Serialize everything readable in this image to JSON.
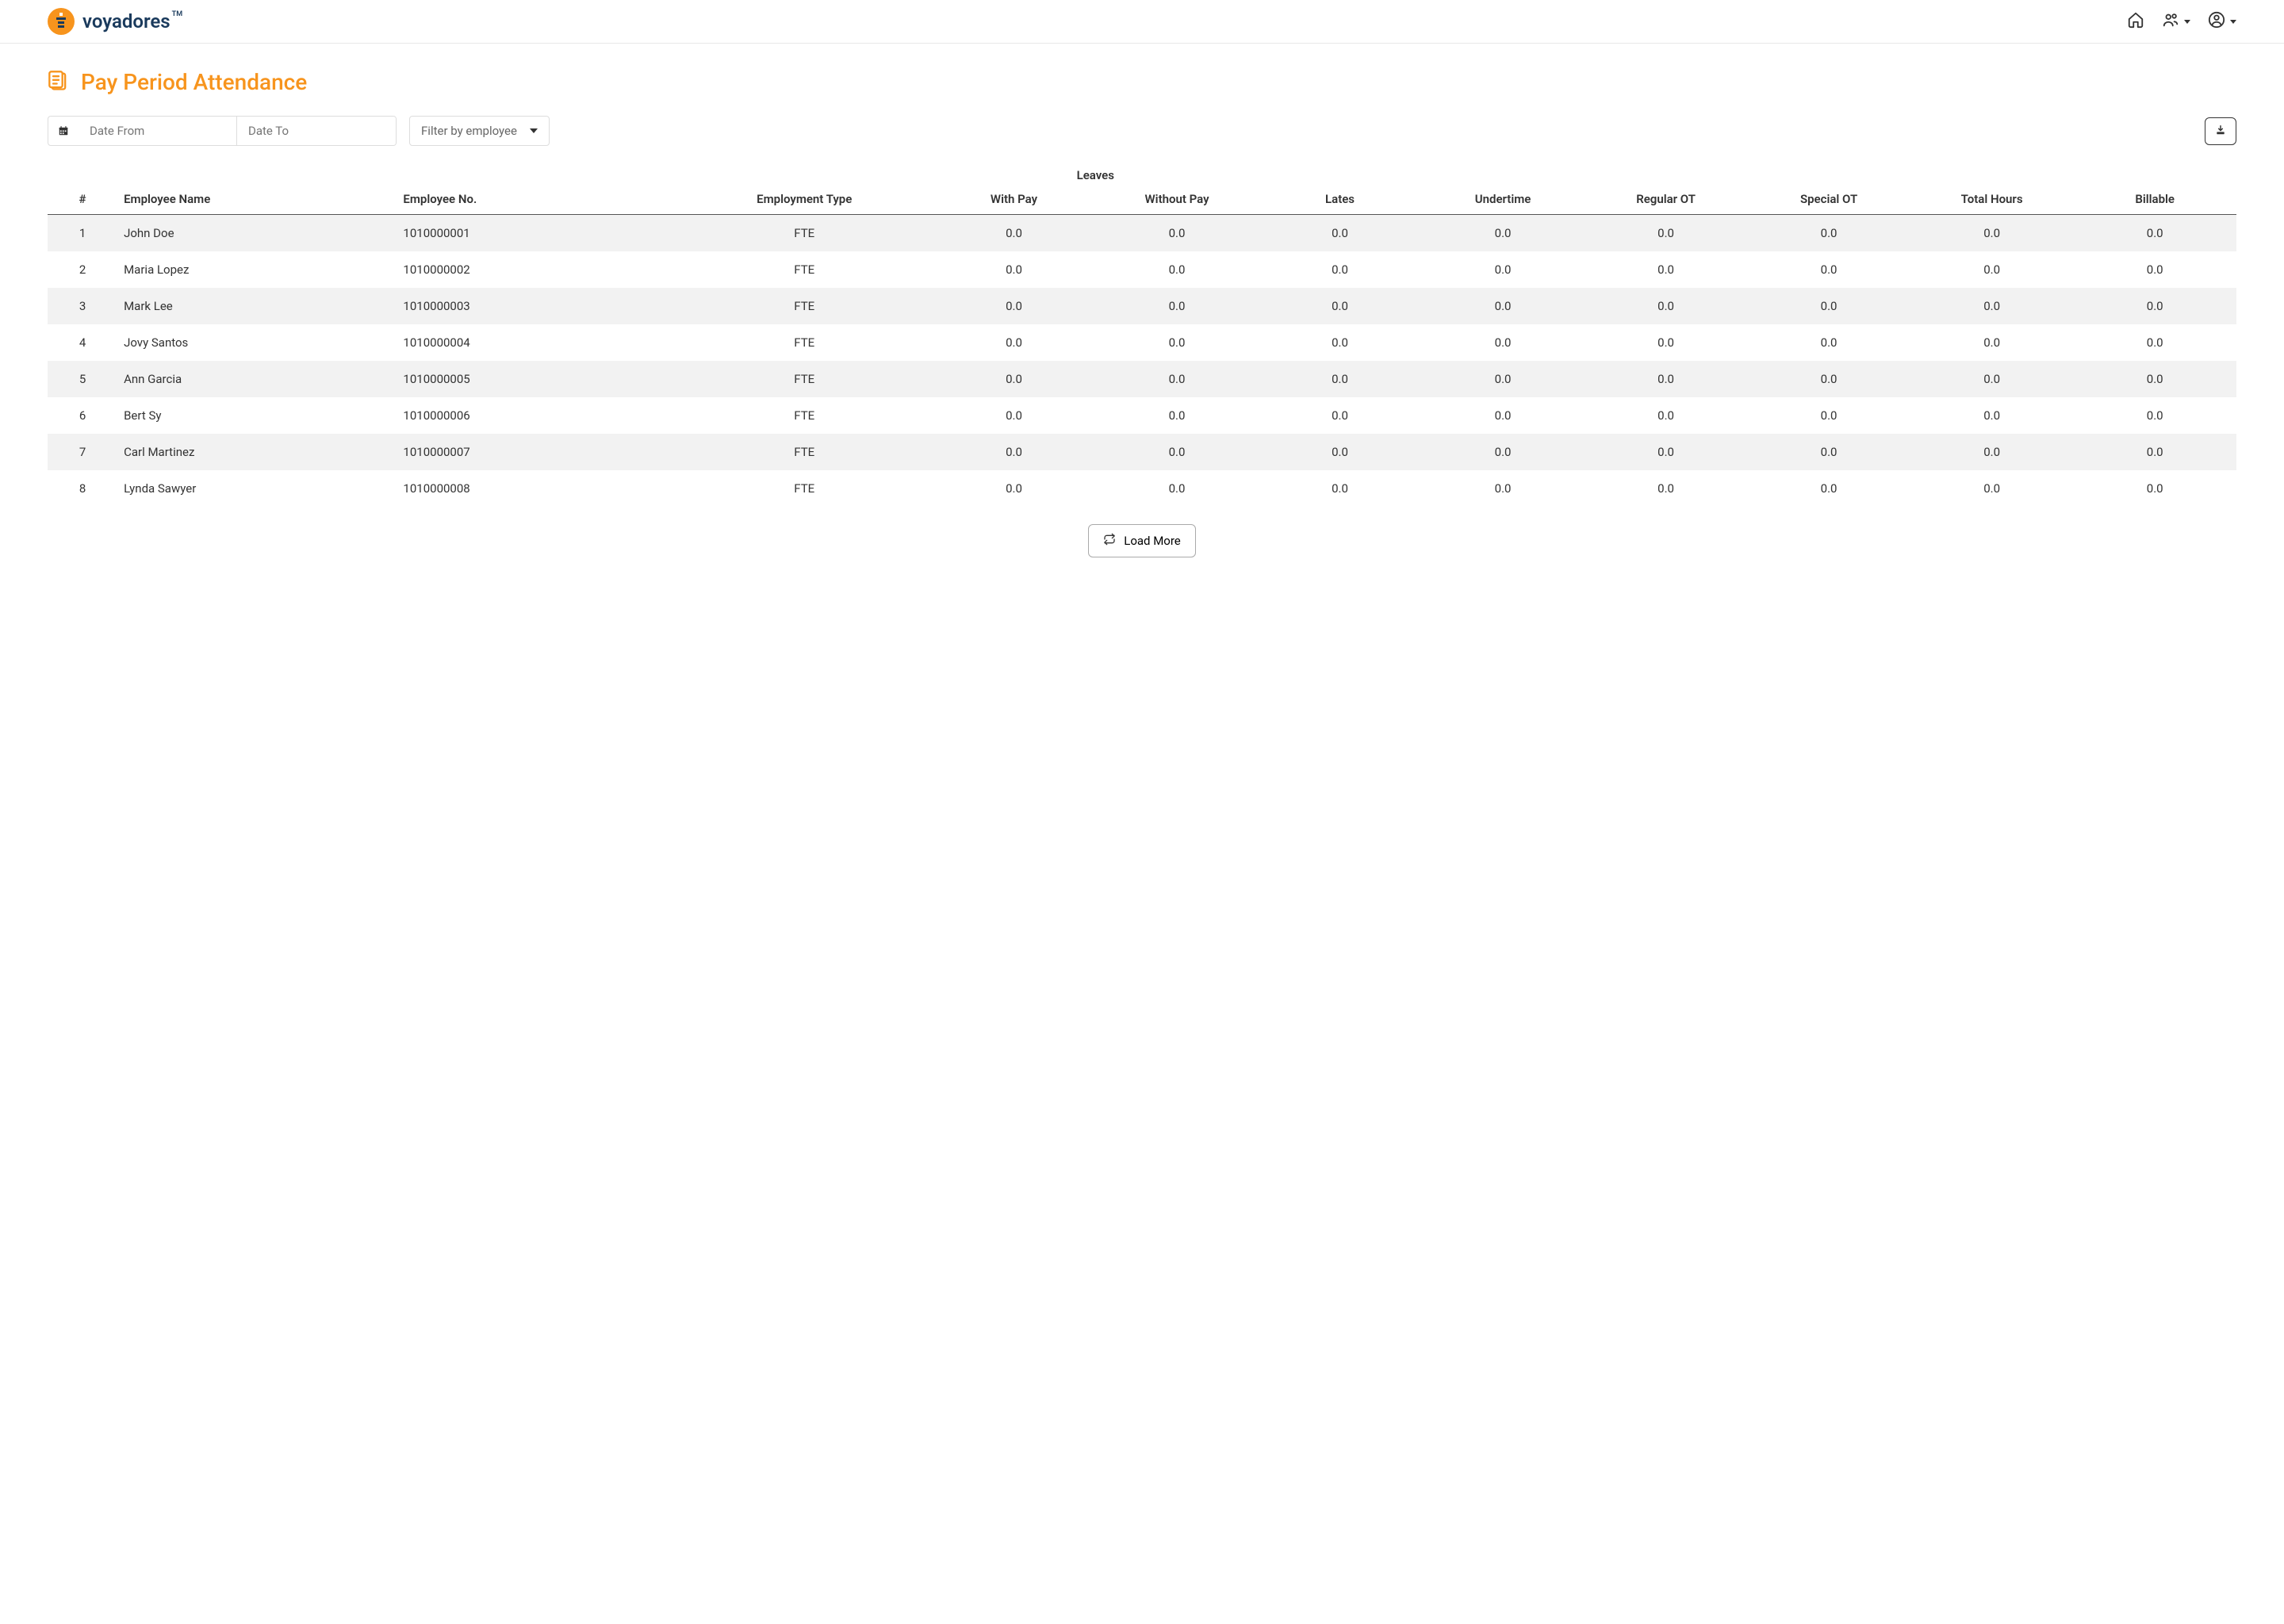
{
  "brand": {
    "name": "voyadores",
    "tm": "TM"
  },
  "page": {
    "title": "Pay Period Attendance"
  },
  "filters": {
    "date_from_placeholder": "Date From",
    "date_to_placeholder": "Date To",
    "employee_filter": "Filter by employee"
  },
  "load_more_label": "Load More",
  "table": {
    "group_header_leaves": "Leaves",
    "columns": {
      "idx": "#",
      "name": "Employee Name",
      "no": "Employee No.",
      "type": "Employment Type",
      "with_pay": "With Pay",
      "without_pay": "Without Pay",
      "lates": "Lates",
      "undertime": "Undertime",
      "regular_ot": "Regular OT",
      "special_ot": "Special OT",
      "total_hours": "Total Hours",
      "billable": "Billable"
    },
    "rows": [
      {
        "idx": "1",
        "name": "John Doe",
        "no": "1010000001",
        "type": "FTE",
        "with_pay": "0.0",
        "without_pay": "0.0",
        "lates": "0.0",
        "undertime": "0.0",
        "regular_ot": "0.0",
        "special_ot": "0.0",
        "total_hours": "0.0",
        "billable": "0.0"
      },
      {
        "idx": "2",
        "name": "Maria Lopez",
        "no": "1010000002",
        "type": "FTE",
        "with_pay": "0.0",
        "without_pay": "0.0",
        "lates": "0.0",
        "undertime": "0.0",
        "regular_ot": "0.0",
        "special_ot": "0.0",
        "total_hours": "0.0",
        "billable": "0.0"
      },
      {
        "idx": "3",
        "name": "Mark Lee",
        "no": "1010000003",
        "type": "FTE",
        "with_pay": "0.0",
        "without_pay": "0.0",
        "lates": "0.0",
        "undertime": "0.0",
        "regular_ot": "0.0",
        "special_ot": "0.0",
        "total_hours": "0.0",
        "billable": "0.0"
      },
      {
        "idx": "4",
        "name": "Jovy Santos",
        "no": "1010000004",
        "type": "FTE",
        "with_pay": "0.0",
        "without_pay": "0.0",
        "lates": "0.0",
        "undertime": "0.0",
        "regular_ot": "0.0",
        "special_ot": "0.0",
        "total_hours": "0.0",
        "billable": "0.0"
      },
      {
        "idx": "5",
        "name": "Ann Garcia",
        "no": "1010000005",
        "type": "FTE",
        "with_pay": "0.0",
        "without_pay": "0.0",
        "lates": "0.0",
        "undertime": "0.0",
        "regular_ot": "0.0",
        "special_ot": "0.0",
        "total_hours": "0.0",
        "billable": "0.0"
      },
      {
        "idx": "6",
        "name": "Bert Sy",
        "no": "1010000006",
        "type": "FTE",
        "with_pay": "0.0",
        "without_pay": "0.0",
        "lates": "0.0",
        "undertime": "0.0",
        "regular_ot": "0.0",
        "special_ot": "0.0",
        "total_hours": "0.0",
        "billable": "0.0"
      },
      {
        "idx": "7",
        "name": "Carl Martinez",
        "no": "1010000007",
        "type": "FTE",
        "with_pay": "0.0",
        "without_pay": "0.0",
        "lates": "0.0",
        "undertime": "0.0",
        "regular_ot": "0.0",
        "special_ot": "0.0",
        "total_hours": "0.0",
        "billable": "0.0"
      },
      {
        "idx": "8",
        "name": "Lynda Sawyer",
        "no": "1010000008",
        "type": "FTE",
        "with_pay": "0.0",
        "without_pay": "0.0",
        "lates": "0.0",
        "undertime": "0.0",
        "regular_ot": "0.0",
        "special_ot": "0.0",
        "total_hours": "0.0",
        "billable": "0.0"
      }
    ]
  },
  "colors": {
    "accent": "#f7941d",
    "brand_text": "#1a3a5c",
    "row_stripe": "#f2f2f2",
    "border": "#dddddd",
    "text": "#333333"
  }
}
